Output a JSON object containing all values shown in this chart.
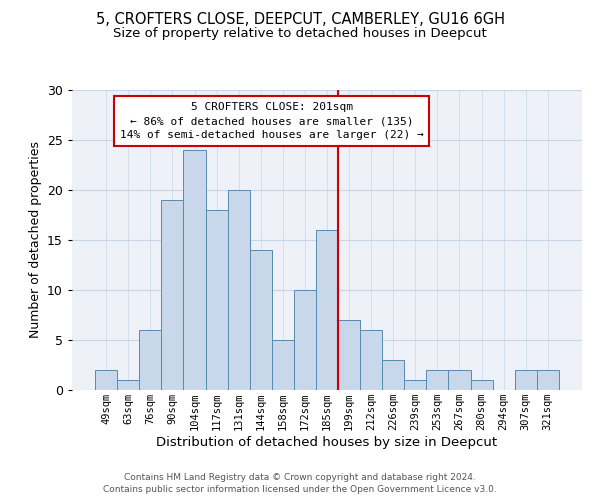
{
  "title_line1": "5, CROFTERS CLOSE, DEEPCUT, CAMBERLEY, GU16 6GH",
  "title_line2": "Size of property relative to detached houses in Deepcut",
  "xlabel": "Distribution of detached houses by size in Deepcut",
  "ylabel": "Number of detached properties",
  "categories": [
    "49sqm",
    "63sqm",
    "76sqm",
    "90sqm",
    "104sqm",
    "117sqm",
    "131sqm",
    "144sqm",
    "158sqm",
    "172sqm",
    "185sqm",
    "199sqm",
    "212sqm",
    "226sqm",
    "239sqm",
    "253sqm",
    "267sqm",
    "280sqm",
    "294sqm",
    "307sqm",
    "321sqm"
  ],
  "values": [
    2,
    1,
    6,
    19,
    24,
    18,
    20,
    14,
    5,
    10,
    16,
    7,
    6,
    3,
    1,
    2,
    2,
    1,
    0,
    2,
    2
  ],
  "bar_color": "#c8d8ea",
  "bar_edge_color": "#5a8ab0",
  "vline_color": "#cc0000",
  "annotation_text": "5 CROFTERS CLOSE: 201sqm\n← 86% of detached houses are smaller (135)\n14% of semi-detached houses are larger (22) →",
  "annotation_box_color": "#cc0000",
  "ylim": [
    0,
    30
  ],
  "yticks": [
    0,
    5,
    10,
    15,
    20,
    25,
    30
  ],
  "grid_color": "#c8d4e8",
  "bg_color": "#eef2f8",
  "footer_line1": "Contains HM Land Registry data © Crown copyright and database right 2024.",
  "footer_line2": "Contains public sector information licensed under the Open Government Licence v3.0.",
  "title_fontsize": 10.5,
  "subtitle_fontsize": 9.5,
  "annotation_fontsize": 8,
  "footer_fontsize": 6.5,
  "ylabel_fontsize": 9,
  "xlabel_fontsize": 9.5
}
